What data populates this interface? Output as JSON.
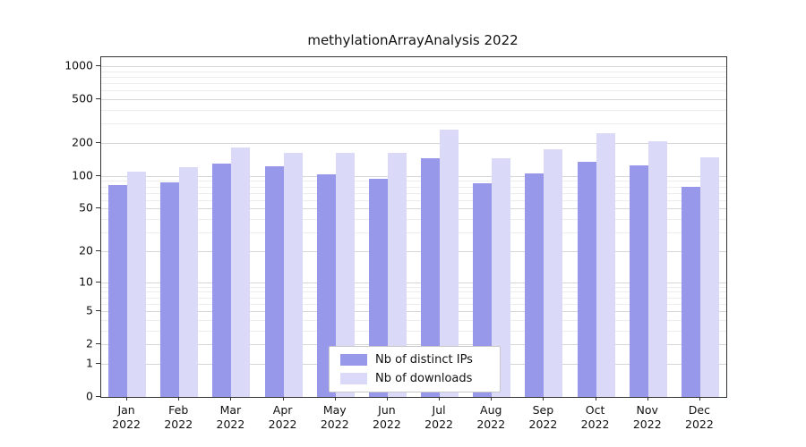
{
  "chart_data": {
    "type": "bar",
    "title": "methylationArrayAnalysis 2022",
    "categories": [
      "Jan",
      "Feb",
      "Mar",
      "Apr",
      "May",
      "Jun",
      "Jul",
      "Aug",
      "Sep",
      "Oct",
      "Nov",
      "Dec"
    ],
    "year_label": "2022",
    "series": [
      {
        "name": "Nb of distinct IPs",
        "color": "#9898EB",
        "values": [
          83,
          87,
          130,
          123,
          104,
          94,
          146,
          85,
          106,
          136,
          126,
          79
        ]
      },
      {
        "name": "Nb of downloads",
        "color": "#DADAF8",
        "values": [
          110,
          120,
          182,
          164,
          164,
          164,
          265,
          144,
          176,
          247,
          209,
          149
        ]
      }
    ],
    "yscale": "log(1+x)",
    "yticks": [
      0,
      1,
      2,
      5,
      10,
      20,
      50,
      100,
      200,
      500,
      1000
    ],
    "ylim": [
      0,
      1000
    ],
    "xlabel": "",
    "ylabel": "",
    "grid": true,
    "legend_position": "bottom-center-inside"
  }
}
